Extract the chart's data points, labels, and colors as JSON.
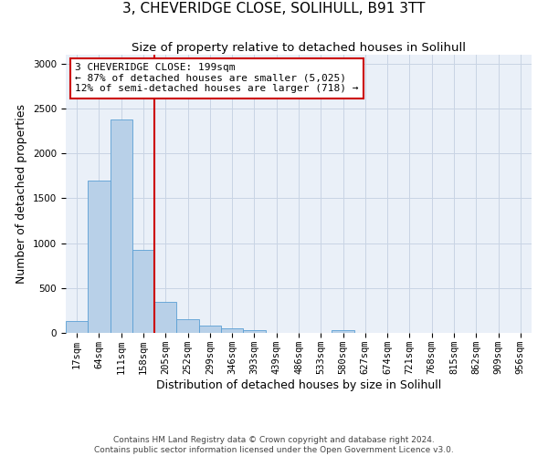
{
  "title": "3, CHEVERIDGE CLOSE, SOLIHULL, B91 3TT",
  "subtitle": "Size of property relative to detached houses in Solihull",
  "xlabel": "Distribution of detached houses by size in Solihull",
  "ylabel": "Number of detached properties",
  "footer_line1": "Contains HM Land Registry data © Crown copyright and database right 2024.",
  "footer_line2": "Contains public sector information licensed under the Open Government Licence v3.0.",
  "categories": [
    "17sqm",
    "64sqm",
    "111sqm",
    "158sqm",
    "205sqm",
    "252sqm",
    "299sqm",
    "346sqm",
    "393sqm",
    "439sqm",
    "486sqm",
    "533sqm",
    "580sqm",
    "627sqm",
    "674sqm",
    "721sqm",
    "768sqm",
    "815sqm",
    "862sqm",
    "909sqm",
    "956sqm"
  ],
  "values": [
    130,
    1700,
    2380,
    920,
    350,
    150,
    80,
    50,
    35,
    0,
    0,
    0,
    30,
    0,
    0,
    0,
    0,
    0,
    0,
    0,
    0
  ],
  "bar_color": "#b8d0e8",
  "bar_edge_color": "#5a9fd4",
  "vline_x_idx": 4,
  "vline_color": "#cc0000",
  "annotation_line1": "3 CHEVERIDGE CLOSE: 199sqm",
  "annotation_line2": "← 87% of detached houses are smaller (5,025)",
  "annotation_line3": "12% of semi-detached houses are larger (718) →",
  "annotation_box_color": "#cc0000",
  "ylim": [
    0,
    3100
  ],
  "yticks": [
    0,
    500,
    1000,
    1500,
    2000,
    2500,
    3000
  ],
  "background_color": "#ffffff",
  "plot_bg_color": "#eaf0f8",
  "grid_color": "#c8d4e4",
  "title_fontsize": 11,
  "subtitle_fontsize": 9.5,
  "xlabel_fontsize": 9,
  "ylabel_fontsize": 9,
  "tick_fontsize": 7.5,
  "annotation_fontsize": 8,
  "footer_fontsize": 6.5
}
